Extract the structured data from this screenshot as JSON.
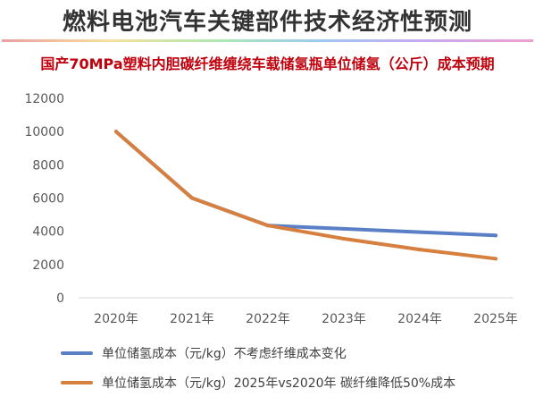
{
  "title": "燃料电池汽车关键部件技术经济性预测",
  "chart_data": {
    "type": "line",
    "title": "国产70MPa塑料内胆碳纤维缠绕车载储氢瓶单位储氢（公斤）成本预期",
    "xlabel": "",
    "ylabel": "",
    "categories": [
      "2020年",
      "2021年",
      "2022年",
      "2023年",
      "2024年",
      "2025年"
    ],
    "ylim": [
      0,
      12000
    ],
    "yticks": [
      0,
      2000,
      4000,
      6000,
      8000,
      10000,
      12000
    ],
    "grid": false,
    "legend_position": "bottom",
    "series": [
      {
        "name": "单位储氢成本（元/kg）不考虑纤维成本变化",
        "color": "#5b7fc7",
        "values": [
          10000,
          6000,
          4350,
          4150,
          3950,
          3750
        ]
      },
      {
        "name": "单位储氢成本（元/kg）2025年vs2020年 碳纤维降低50%成本",
        "color": "#d67f3f",
        "values": [
          10000,
          6000,
          4350,
          3550,
          2900,
          2350
        ]
      }
    ]
  }
}
